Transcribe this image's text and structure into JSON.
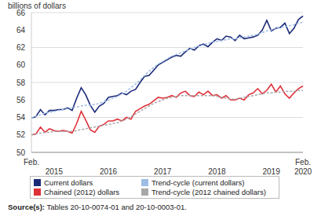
{
  "chart_data": {
    "type": "line",
    "ylabel": "billions of dollars",
    "categories": [
      "Feb.",
      null,
      null,
      null,
      null,
      null,
      null,
      null,
      null,
      null,
      null,
      null,
      null,
      null,
      null,
      null,
      null,
      null,
      null,
      null,
      null,
      null,
      null,
      null,
      null,
      null,
      null,
      null,
      null,
      null,
      null,
      null,
      null,
      null,
      null,
      null,
      null,
      null,
      null,
      null,
      null,
      null,
      null,
      null,
      null,
      null,
      null,
      null,
      null,
      null,
      null,
      null,
      null,
      null,
      null,
      null,
      null,
      null,
      null,
      null,
      "Feb."
    ],
    "year_labels": [
      null,
      null,
      null,
      null,
      null,
      "2015",
      null,
      null,
      null,
      null,
      null,
      null,
      null,
      null,
      null,
      null,
      null,
      "2016",
      null,
      null,
      null,
      null,
      null,
      null,
      null,
      null,
      null,
      null,
      null,
      "2017",
      null,
      null,
      null,
      null,
      null,
      null,
      null,
      null,
      null,
      null,
      null,
      "2018",
      null,
      null,
      null,
      null,
      null,
      null,
      null,
      null,
      null,
      null,
      null,
      "2019",
      null,
      null,
      null,
      null,
      null,
      null,
      "2020"
    ],
    "series": [
      {
        "name": "Current dollars",
        "color": "#1b2a78",
        "line_style": "solid",
        "values": [
          53.9,
          54.1,
          54.9,
          54.3,
          54.8,
          54.8,
          54.9,
          54.9,
          55.1,
          54.8,
          56.2,
          57.4,
          56.6,
          55.4,
          54.6,
          55.3,
          55.6,
          56.3,
          56.4,
          56.5,
          56.8,
          56.6,
          57.0,
          57.2,
          58.0,
          58.7,
          58.8,
          59.4,
          60.0,
          60.3,
          60.6,
          60.9,
          61.1,
          61.0,
          61.5,
          61.9,
          61.7,
          62.2,
          62.4,
          62.1,
          62.6,
          63.0,
          62.8,
          63.3,
          63.2,
          62.8,
          63.4,
          63.0,
          63.1,
          63.2,
          63.4,
          64.0,
          65.1,
          63.9,
          64.2,
          64.3,
          64.8,
          63.6,
          64.2,
          65.2,
          65.6
        ]
      },
      {
        "name": "Trend-cycle (current dollars)",
        "color": "#9dbde6",
        "line_style": "dashed",
        "values": [
          53.9,
          54.1,
          54.3,
          54.5,
          54.6,
          54.7,
          54.8,
          54.9,
          55.0,
          55.1,
          55.2,
          55.3,
          55.4,
          55.4,
          55.5,
          55.6,
          55.8,
          56.0,
          56.2,
          56.4,
          56.7,
          57.0,
          57.4,
          57.8,
          58.3,
          58.8,
          59.3,
          59.7,
          60.1,
          60.4,
          60.7,
          61.0,
          61.2,
          61.4,
          61.6,
          61.8,
          62.0,
          62.2,
          62.3,
          62.5,
          62.6,
          62.7,
          62.8,
          62.9,
          63.0,
          63.0,
          63.1,
          63.2,
          63.3,
          63.4,
          63.5,
          63.7,
          63.9,
          64.0,
          64.2,
          64.3,
          64.4,
          64.5,
          64.6,
          64.8,
          64.9
        ]
      },
      {
        "name": "Chained (2012) dollars",
        "color": "#e0303a",
        "line_style": "solid",
        "values": [
          52.0,
          52.1,
          52.9,
          52.3,
          52.7,
          52.5,
          52.4,
          52.5,
          52.4,
          52.2,
          53.3,
          54.7,
          53.7,
          52.6,
          52.3,
          53.0,
          53.2,
          53.6,
          53.6,
          53.8,
          53.6,
          54.0,
          53.8,
          54.7,
          55.0,
          55.3,
          55.5,
          55.9,
          56.3,
          56.2,
          56.3,
          56.5,
          56.3,
          56.8,
          57.0,
          56.5,
          56.4,
          56.9,
          56.6,
          57.0,
          56.5,
          56.6,
          56.2,
          56.5,
          56.0,
          56.0,
          56.2,
          56.0,
          56.6,
          56.8,
          57.3,
          56.7,
          57.1,
          57.8,
          56.9,
          57.6,
          56.7,
          56.2,
          56.8,
          57.3,
          57.6
        ]
      },
      {
        "name": "Trend-cycle (2012 chained dollars)",
        "color": "#a8a8a8",
        "line_style": "dashed",
        "values": [
          52.0,
          52.1,
          52.2,
          52.3,
          52.3,
          52.4,
          52.4,
          52.4,
          52.4,
          52.4,
          52.5,
          52.6,
          52.7,
          52.8,
          52.9,
          53.0,
          53.1,
          53.2,
          53.3,
          53.4,
          53.6,
          53.8,
          54.1,
          54.4,
          54.7,
          55.0,
          55.3,
          55.6,
          55.8,
          56.0,
          56.2,
          56.3,
          56.4,
          56.5,
          56.5,
          56.5,
          56.5,
          56.5,
          56.5,
          56.5,
          56.5,
          56.4,
          56.3,
          56.2,
          56.1,
          56.1,
          56.2,
          56.3,
          56.4,
          56.5,
          56.6,
          56.7,
          56.8,
          56.8,
          56.9,
          56.9,
          57.0,
          57.0,
          57.0,
          57.1,
          57.1
        ]
      }
    ],
    "ylim": [
      50,
      66
    ],
    "yticks": [
      50,
      52,
      54,
      56,
      58,
      60,
      62,
      64,
      66
    ],
    "grid": true,
    "legend": "bottom",
    "source": {
      "label": "Source(s):",
      "text": "Tables 20-10-0074-01 and 20-10-0003-01."
    }
  }
}
